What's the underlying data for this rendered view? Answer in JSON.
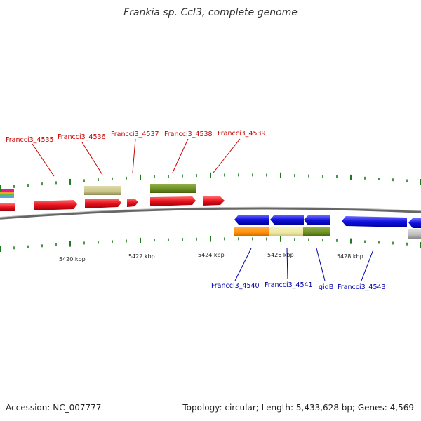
{
  "title": "Frankia sp. CcI3, complete genome",
  "footer": {
    "accession": "Accession: NC_007777",
    "summary": "Topology: circular; Length: 5,433,628 bp; Genes: 4,569"
  },
  "colors": {
    "forward_gene": "#e8101a",
    "reverse_gene": "#1010e0",
    "forward_label": "#cc0000",
    "reverse_label": "#0000aa",
    "tick": "#1f7a1f",
    "backbone": "#777777",
    "khaki": "#c8c48a",
    "olive": "#6b8e23",
    "orange": "#ff8c00",
    "pale_yellow": "#ece6a0",
    "grey": "#bbbbbb"
  },
  "scale": {
    "unit": "kbp",
    "labels": [
      {
        "kbp": 5420,
        "text": "5420 kbp"
      },
      {
        "kbp": 5422,
        "text": "5422 kbp"
      },
      {
        "kbp": 5424,
        "text": "5424 kbp"
      },
      {
        "kbp": 5426,
        "text": "5426 kbp"
      },
      {
        "kbp": 5428,
        "text": "5428 kbp"
      }
    ]
  },
  "forward_genes": [
    {
      "name": "Francci3_4535"
    },
    {
      "name": "Francci3_4536"
    },
    {
      "name": "Francci3_4537"
    },
    {
      "name": "Francci3_4538"
    },
    {
      "name": "Francci3_4539"
    }
  ],
  "reverse_genes": [
    {
      "name": "Francci3_4540"
    },
    {
      "name": "Francci3_4541"
    },
    {
      "name": "gidB"
    },
    {
      "name": "Francci3_4543"
    }
  ]
}
